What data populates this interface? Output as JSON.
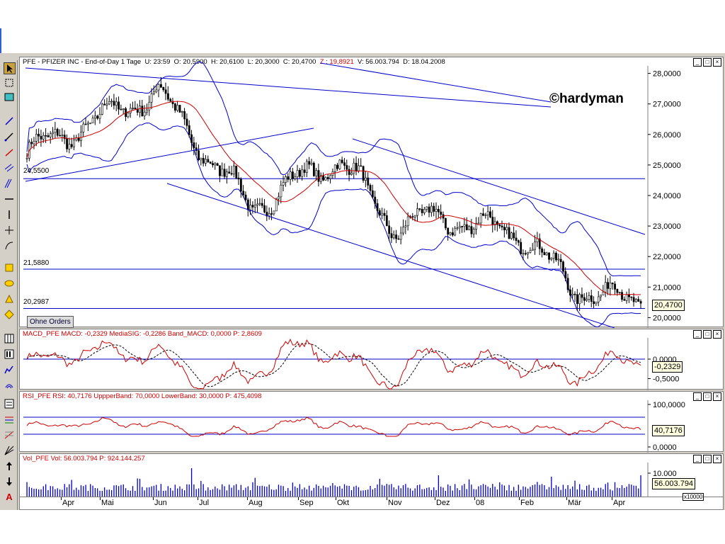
{
  "price_panel": {
    "info": {
      "symbol": "PFE - PFIZER INC - End-of-Day 1 Tage",
      "u": "U: 23:59",
      "o": "O: 20,5900",
      "h": "H: 20,6100",
      "l": "L: 20,3000",
      "c": "C: 20,4700",
      "z": "Z : 19,8921",
      "v": "V: 56.003.794",
      "d": "D: 18.04.2008"
    },
    "current_value": "20,4700",
    "watermark": "©hardyman",
    "order_button": "Ohne Orders",
    "hlines": [
      {
        "label": "24,5500",
        "value": 24.55
      },
      {
        "label": "21,5880",
        "value": 21.588
      },
      {
        "label": "20,2987",
        "value": 20.2987
      }
    ],
    "y_ticks": [
      "20,0000",
      "21,0000",
      "22,0000",
      "23,0000",
      "24,0000",
      "25,0000",
      "26,0000",
      "27,0000",
      "28,0000"
    ]
  },
  "macd_panel": {
    "info": "MACD_PFE  MACD: -0,2329  MediaSIG: -0,2286  Band_MACD: 0,0000  P: 2,8609",
    "current_value": "-0,2329",
    "y_ticks": [
      "0,0000",
      "-0,5000"
    ]
  },
  "rsi_panel": {
    "info": "RSI_PFE  RSI: 40,7176  UppperBand: 70,0000  LowerBand: 30,0000  P: 475,4098",
    "current_value": "40,7176",
    "y_ticks": [
      "100,0000",
      "0,0000"
    ]
  },
  "vol_panel": {
    "info": "Vol_PFE  Vol: 56.003.794  P: 924.144.257",
    "current_value": "56.003.794",
    "y_ticks": [
      "10.000"
    ],
    "multiplier": "x10000"
  },
  "time_axis": [
    "Apr",
    "Mai",
    "Jun",
    "Jul",
    "Aug",
    "Sep",
    "Okt",
    "Nov",
    "Dez",
    "08",
    "Feb",
    "Mär",
    "Apr"
  ],
  "colors": {
    "price": "#000000",
    "ma": "#cc0000",
    "bands": "#0000cc",
    "trend": "#0000cc"
  },
  "chart_data": [
    {
      "type": "candlestick",
      "title": "PFE - PFIZER INC - End-of-Day 1 Tage",
      "x": [
        "Apr",
        "Mai",
        "Jun",
        "Jul",
        "Aug",
        "Sep",
        "Okt",
        "Nov",
        "Dez",
        "08",
        "Feb",
        "Mär",
        "Apr"
      ],
      "approx_close_path": [
        {
          "x": "Apr",
          "y": 25.4
        },
        {
          "x": "Mai",
          "y": 26.6
        },
        {
          "x": "Jun",
          "y": 27.4
        },
        {
          "x": "Jul",
          "y": 25.5
        },
        {
          "x": "Aug",
          "y": 23.6
        },
        {
          "x": "Sep",
          "y": 24.6
        },
        {
          "x": "Okt",
          "y": 25.2
        },
        {
          "x": "Nov",
          "y": 23.0
        },
        {
          "x": "Dez",
          "y": 23.3
        },
        {
          "x": "08",
          "y": 23.0
        },
        {
          "x": "Feb",
          "y": 22.7
        },
        {
          "x": "Mär",
          "y": 21.0
        },
        {
          "x": "Apr",
          "y": 20.47
        }
      ],
      "ylim": [
        19.8,
        28.2
      ],
      "overlays": [
        "moving average",
        "Bollinger bands",
        "trend channel"
      ]
    },
    {
      "type": "line",
      "series": [
        {
          "name": "MACD",
          "last": -0.2329
        },
        {
          "name": "MediaSIG",
          "last": -0.2286
        },
        {
          "name": "Band_MACD",
          "last": 0.0
        }
      ]
    },
    {
      "type": "line",
      "series": [
        {
          "name": "RSI",
          "last": 40.7176
        }
      ],
      "bands": [
        70,
        30
      ],
      "ylim": [
        0,
        100
      ]
    },
    {
      "type": "bar",
      "series": [
        {
          "name": "Vol",
          "last": 56003794
        }
      ]
    }
  ]
}
